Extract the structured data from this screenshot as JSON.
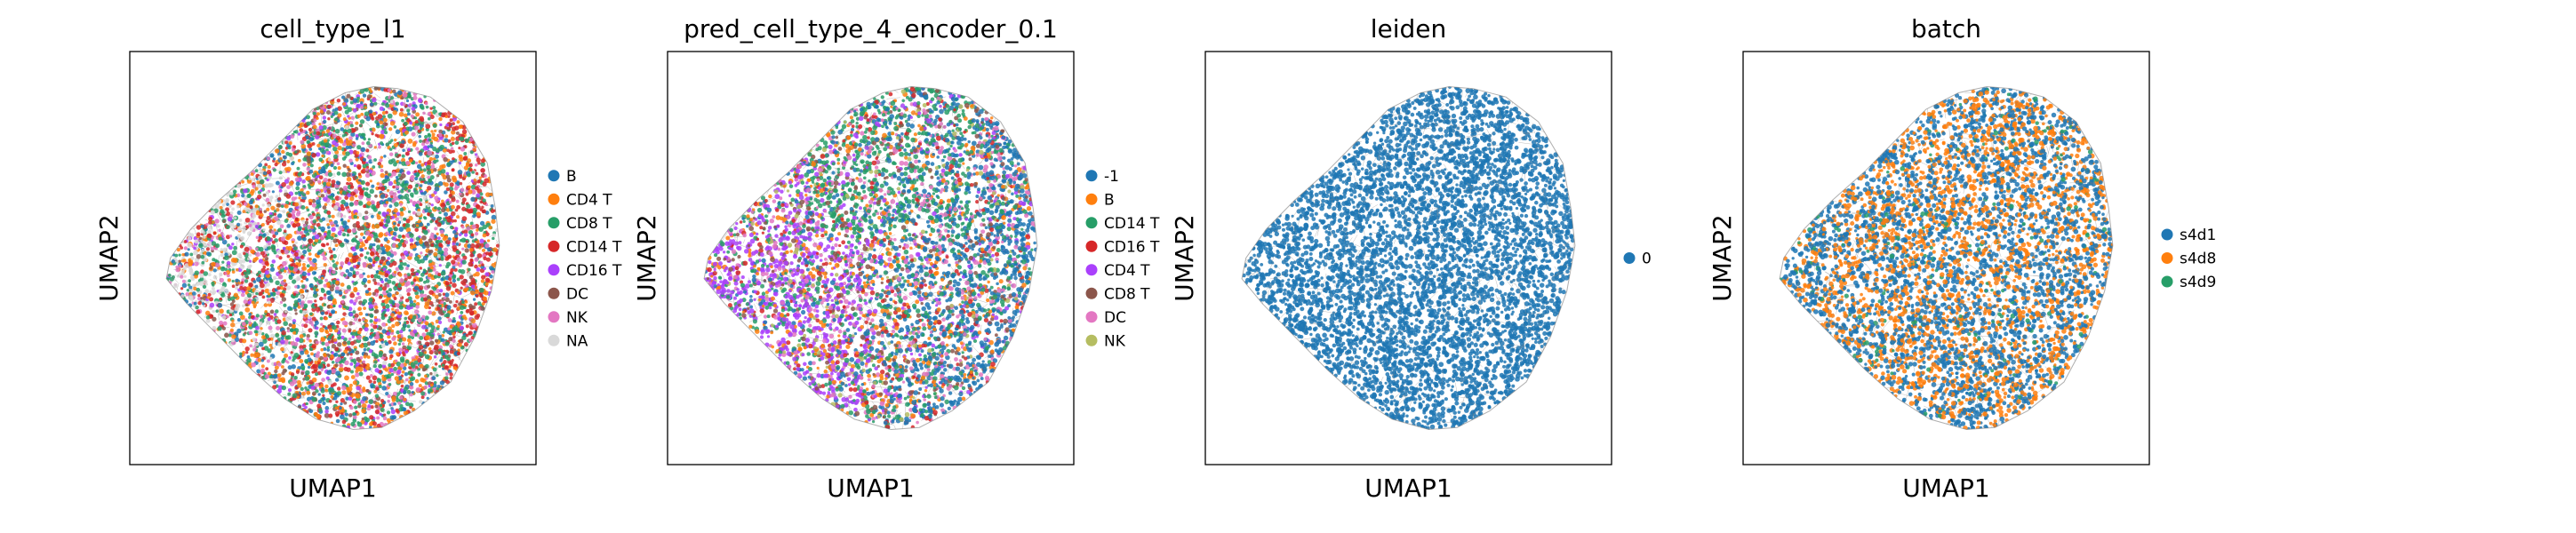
{
  "chart_data": [
    {
      "type": "scatter",
      "title": "cell_type_l1",
      "xlabel": "UMAP1",
      "ylabel": "UMAP2",
      "grid": false,
      "ticks": false,
      "legend_position": "right",
      "legend": [
        {
          "label": "B",
          "color": "#1f77b4"
        },
        {
          "label": "CD4 T",
          "color": "#ff7f0e"
        },
        {
          "label": "CD8 T",
          "color": "#279e68"
        },
        {
          "label": "CD14 T",
          "color": "#d62728"
        },
        {
          "label": "CD16 T",
          "color": "#aa40fc"
        },
        {
          "label": "DC",
          "color": "#8c564b"
        },
        {
          "label": "NK",
          "color": "#e377c2"
        },
        {
          "label": "NA",
          "color": "#d9d9d9"
        }
      ]
    },
    {
      "type": "scatter",
      "title": "pred_cell_type_4_encoder_0.1",
      "xlabel": "UMAP1",
      "ylabel": "UMAP2",
      "grid": false,
      "ticks": false,
      "legend_position": "right",
      "legend": [
        {
          "label": "-1",
          "color": "#1f77b4"
        },
        {
          "label": "B",
          "color": "#ff7f0e"
        },
        {
          "label": "CD14 T",
          "color": "#279e68"
        },
        {
          "label": "CD16 T",
          "color": "#d62728"
        },
        {
          "label": "CD4 T",
          "color": "#aa40fc"
        },
        {
          "label": "CD8 T",
          "color": "#8c564b"
        },
        {
          "label": "DC",
          "color": "#e377c2"
        },
        {
          "label": "NK",
          "color": "#b5bd61"
        }
      ]
    },
    {
      "type": "scatter",
      "title": "leiden",
      "xlabel": "UMAP1",
      "ylabel": "UMAP2",
      "grid": false,
      "ticks": false,
      "legend_position": "right",
      "legend": [
        {
          "label": "0",
          "color": "#1f77b4"
        }
      ]
    },
    {
      "type": "scatter",
      "title": "batch",
      "xlabel": "UMAP1",
      "ylabel": "UMAP2",
      "grid": false,
      "ticks": false,
      "legend_position": "right",
      "legend": [
        {
          "label": "s4d1",
          "color": "#1f77b4"
        },
        {
          "label": "s4d8",
          "color": "#ff7f0e"
        },
        {
          "label": "s4d9",
          "color": "#279e68"
        }
      ]
    }
  ]
}
